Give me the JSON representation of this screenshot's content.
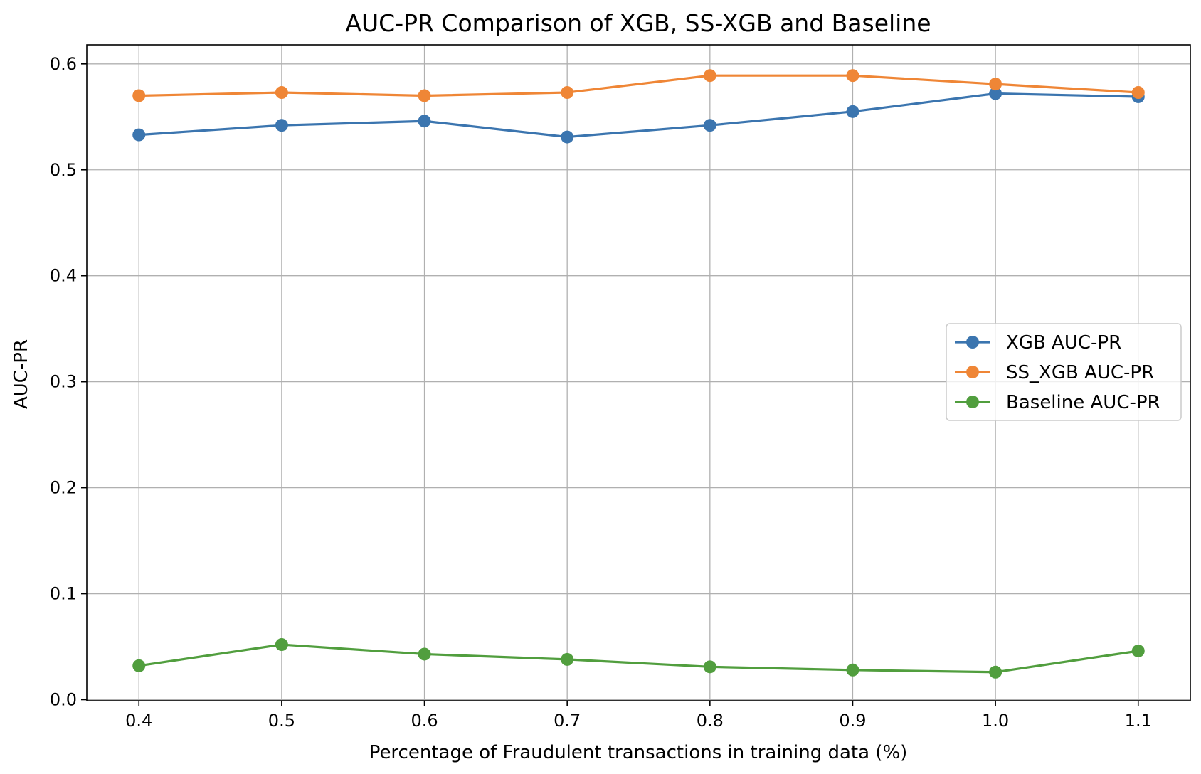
{
  "chart_data": {
    "type": "line",
    "title": "AUC-PR Comparison of XGB, SS-XGB and Baseline",
    "xlabel": "Percentage of Fraudulent transactions in training data (%)",
    "ylabel": "AUC-PR",
    "x": [
      0.4,
      0.5,
      0.6,
      0.7,
      0.8,
      0.9,
      1.0,
      1.1
    ],
    "xticks": [
      "0.4",
      "0.5",
      "0.6",
      "0.7",
      "0.8",
      "0.9",
      "1.0",
      "1.1"
    ],
    "yticks": [
      "0.0",
      "0.1",
      "0.2",
      "0.3",
      "0.4",
      "0.5",
      "0.6"
    ],
    "xlim": [
      0.3635,
      1.1365
    ],
    "ylim": [
      -0.001,
      0.618
    ],
    "grid": true,
    "legend_position": "center-right",
    "series": [
      {
        "name": "XGB AUC-PR",
        "color": "#3b75af",
        "marker": "circle",
        "values": [
          0.533,
          0.542,
          0.546,
          0.531,
          0.542,
          0.555,
          0.572,
          0.569
        ]
      },
      {
        "name": "SS_XGB AUC-PR",
        "color": "#ef8636",
        "marker": "circle",
        "values": [
          0.57,
          0.573,
          0.57,
          0.573,
          0.589,
          0.589,
          0.581,
          0.573
        ]
      },
      {
        "name": "Baseline AUC-PR",
        "color": "#519e3e",
        "marker": "circle",
        "values": [
          0.032,
          0.052,
          0.043,
          0.038,
          0.031,
          0.028,
          0.026,
          0.046
        ]
      }
    ]
  }
}
